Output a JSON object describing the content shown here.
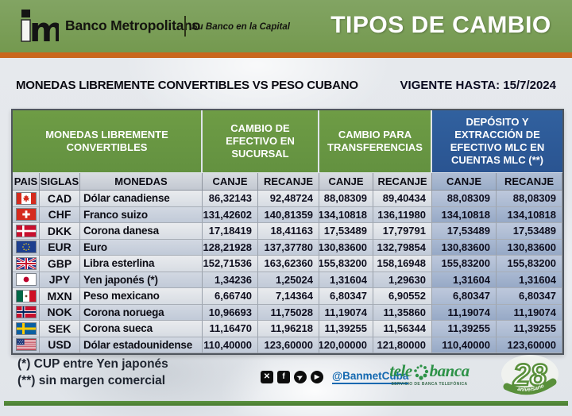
{
  "header": {
    "bank_name": "Banco Metropolitano",
    "tagline": "Su Banco en la Capital",
    "title": "TIPOS DE CAMBIO"
  },
  "subheader": {
    "left": "MONEDAS LIBREMENTE CONVERTIBLES VS PESO CUBANO",
    "valid_label": "VIGENTE HASTA:",
    "valid_date": "15/7/2024"
  },
  "table": {
    "group_headers": [
      "MONEDAS LIBREMENTE CONVERTIBLES",
      "CAMBIO DE EFECTIVO EN SUCURSAL",
      "CAMBIO PARA TRANSFERENCIAS",
      "DEPÓSITO Y EXTRACCIÓN DE EFECTIVO MLC EN CUENTAS MLC (**)"
    ],
    "columns": [
      "PAIS",
      "SIGLAS",
      "MONEDAS",
      "CANJE",
      "RECANJE",
      "CANJE",
      "RECANJE",
      "CANJE",
      "RECANJE"
    ],
    "rows": [
      {
        "flag": "canada-flag",
        "siglas": "CAD",
        "moneda": "Dólar canadiense",
        "values": [
          "86,32143",
          "92,48724",
          "88,08309",
          "89,40434",
          "88,08309",
          "88,08309"
        ]
      },
      {
        "flag": "switzerland-flag",
        "siglas": "CHF",
        "moneda": "Franco suizo",
        "values": [
          "131,42602",
          "140,81359",
          "134,10818",
          "136,11980",
          "134,10818",
          "134,10818"
        ]
      },
      {
        "flag": "denmark-flag",
        "siglas": "DKK",
        "moneda": "Corona danesa",
        "values": [
          "17,18419",
          "18,41163",
          "17,53489",
          "17,79791",
          "17,53489",
          "17,53489"
        ]
      },
      {
        "flag": "eu-flag",
        "siglas": "EUR",
        "moneda": "Euro",
        "values": [
          "128,21928",
          "137,37780",
          "130,83600",
          "132,79854",
          "130,83600",
          "130,83600"
        ]
      },
      {
        "flag": "uk-flag",
        "siglas": "GBP",
        "moneda": "Libra esterlina",
        "values": [
          "152,71536",
          "163,62360",
          "155,83200",
          "158,16948",
          "155,83200",
          "155,83200"
        ]
      },
      {
        "flag": "japan-flag",
        "siglas": "JPY",
        "moneda": "Yen japonés (*)",
        "values": [
          "1,34236",
          "1,25024",
          "1,31604",
          "1,29630",
          "1,31604",
          "1,31604"
        ]
      },
      {
        "flag": "mexico-flag",
        "siglas": "MXN",
        "moneda": "Peso mexicano",
        "values": [
          "6,66740",
          "7,14364",
          "6,80347",
          "6,90552",
          "6,80347",
          "6,80347"
        ]
      },
      {
        "flag": "norway-flag",
        "siglas": "NOK",
        "moneda": "Corona noruega",
        "values": [
          "10,96693",
          "11,75028",
          "11,19074",
          "11,35860",
          "11,19074",
          "11,19074"
        ]
      },
      {
        "flag": "sweden-flag",
        "siglas": "SEK",
        "moneda": "Corona sueca",
        "values": [
          "11,16470",
          "11,96218",
          "11,39255",
          "11,56344",
          "11,39255",
          "11,39255"
        ]
      },
      {
        "flag": "usa-flag",
        "siglas": "USD",
        "moneda": "Dólar estadounidense",
        "values": [
          "110,40000",
          "123,60000",
          "120,00000",
          "121,80000",
          "110,40000",
          "123,60000"
        ]
      }
    ]
  },
  "footer": {
    "note1": "(*) CUP entre Yen japonés",
    "note2": "(**) sin margen comercial",
    "social_icons": [
      {
        "name": "x-icon",
        "glyph": "✕"
      },
      {
        "name": "facebook-icon",
        "glyph": "f"
      },
      {
        "name": "telegram-icon",
        "glyph": "➤"
      },
      {
        "name": "youtube-icon",
        "glyph": "▶"
      }
    ],
    "handle": "@BanmetCuba",
    "telebanca": {
      "name_left": "tele",
      "name_right": "banca",
      "tagline": "SERVICIO DE BANCA TELEFÓNICA"
    },
    "anniversary": {
      "number": "28",
      "label": "aniversario"
    }
  },
  "colors": {
    "banner_green": "#74994f",
    "orange_bar": "#c9671d",
    "table_green": "#68963f",
    "table_blue": "#2d5a9e",
    "bottom_green": "#4f8637",
    "handle_blue": "#1368b0",
    "telebanca_green": "#2d9247"
  }
}
